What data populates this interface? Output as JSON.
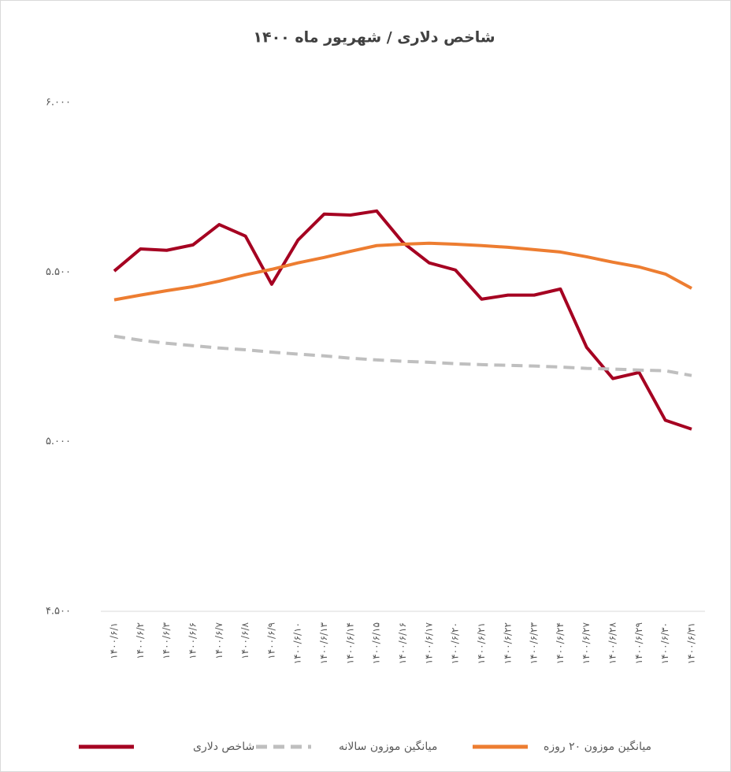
{
  "chart_data": {
    "type": "line",
    "title": "شاخص دلاری / شهریور ماه ۱۴۰۰",
    "categories": [
      "۱۴۰۰/۶/۱",
      "۱۴۰۰/۶/۲",
      "۱۴۰۰/۶/۳",
      "۱۴۰۰/۶/۶",
      "۱۴۰۰/۶/۷",
      "۱۴۰۰/۶/۸",
      "۱۴۰۰/۶/۹",
      "۱۴۰۰/۶/۱۰",
      "۱۴۰۰/۶/۱۳",
      "۱۴۰۰/۶/۱۴",
      "۱۴۰۰/۶/۱۵",
      "۱۴۰۰/۶/۱۶",
      "۱۴۰۰/۶/۱۷",
      "۱۴۰۰/۶/۲۰",
      "۱۴۰۰/۶/۲۱",
      "۱۴۰۰/۶/۲۲",
      "۱۴۰۰/۶/۲۳",
      "۱۴۰۰/۶/۲۴",
      "۱۴۰۰/۶/۲۷",
      "۱۴۰۰/۶/۲۸",
      "۱۴۰۰/۶/۲۹",
      "۱۴۰۰/۶/۳۰",
      "۱۴۰۰/۶/۳۱"
    ],
    "series": [
      {
        "name": "شاخص دلاری",
        "color": "#a50021",
        "dash": false,
        "values": [
          5503,
          5568,
          5564,
          5580,
          5640,
          5606,
          5464,
          5594,
          5671,
          5668,
          5680,
          5587,
          5527,
          5506,
          5420,
          5432,
          5432,
          5450,
          5278,
          5186,
          5204,
          5063,
          5037
        ]
      },
      {
        "name": "میانگین موزون سالانه",
        "color": "#bfbfbf",
        "dash": true,
        "values": [
          5311,
          5299,
          5290,
          5283,
          5276,
          5271,
          5264,
          5258,
          5253,
          5246,
          5241,
          5237,
          5234,
          5230,
          5227,
          5225,
          5223,
          5220,
          5216,
          5214,
          5211,
          5209,
          5195
        ]
      },
      {
        "name": "میانگین موزون ۲۰ روزه",
        "color": "#ed7d31",
        "dash": false,
        "values": [
          5418,
          5432,
          5445,
          5457,
          5473,
          5492,
          5508,
          5527,
          5543,
          5561,
          5578,
          5582,
          5585,
          5582,
          5578,
          5573,
          5566,
          5559,
          5545,
          5529,
          5515,
          5494,
          5452
        ]
      }
    ],
    "ylim": [
      4500,
      6000
    ],
    "yticks": [
      {
        "value": 4500,
        "label": "۴.۵۰۰"
      },
      {
        "value": 5000,
        "label": "۵.۰۰۰"
      },
      {
        "value": 5500,
        "label": "۵.۵۰۰"
      },
      {
        "value": 6000,
        "label": "۶.۰۰۰"
      }
    ],
    "grid": false
  }
}
